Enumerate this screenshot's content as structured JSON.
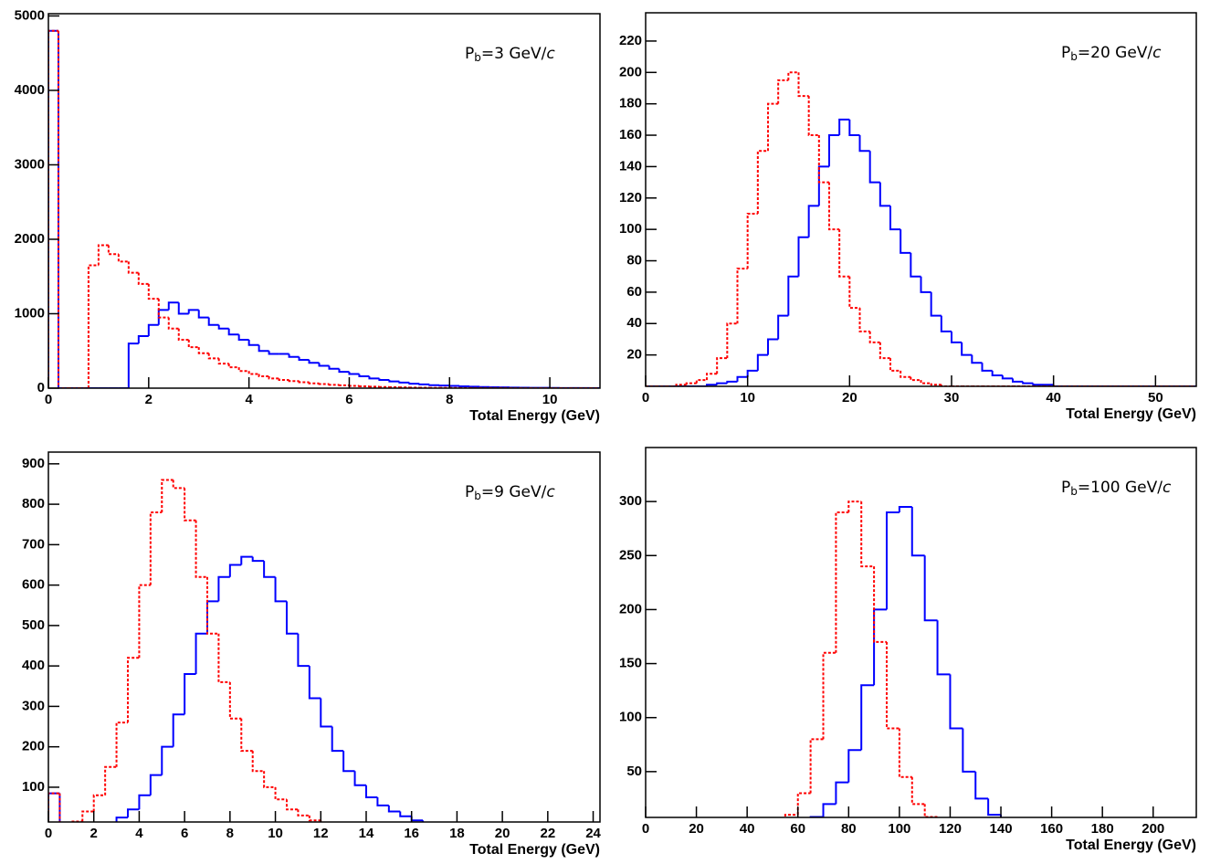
{
  "chart_data": [
    {
      "type": "histogram",
      "xlabel": "Total Energy (GeV)",
      "annotation": [
        "P",
        "b",
        "=3 GeV/",
        "c"
      ],
      "xlim": [
        0,
        11
      ],
      "ylim": [
        0,
        5030
      ],
      "xticks": [
        0,
        2,
        4,
        6,
        8,
        10
      ],
      "yticks": [
        0,
        1000,
        2000,
        3000,
        4000,
        5000
      ],
      "grid": false,
      "bins": [
        0,
        0.2,
        0.4,
        0.6,
        0.8,
        1,
        1.2,
        1.4,
        1.6,
        1.8,
        2,
        2.2,
        2.4,
        2.6,
        2.8,
        3,
        3.2,
        3.4,
        3.6,
        3.8,
        4,
        4.2,
        4.4,
        4.6,
        4.8,
        5,
        5.2,
        5.4,
        5.6,
        5.8,
        6,
        6.2,
        6.4,
        6.6,
        6.8,
        7,
        7.2,
        7.4,
        7.6,
        7.8,
        8,
        8.2,
        8.4,
        8.6,
        8.8,
        9,
        9.2,
        9.4,
        9.6,
        9.8,
        10,
        10.2,
        10.4,
        10.6,
        10.8,
        11
      ],
      "series": [
        {
          "color": "#0000ff",
          "linestyle": "solid",
          "values": [
            4800,
            0,
            0,
            0,
            0,
            0,
            0,
            0,
            600,
            700,
            850,
            1050,
            1150,
            1000,
            1050,
            950,
            850,
            800,
            720,
            650,
            580,
            500,
            460,
            460,
            420,
            380,
            340,
            300,
            260,
            220,
            190,
            160,
            130,
            110,
            90,
            75,
            60,
            50,
            40,
            35,
            30,
            25,
            20,
            15,
            12,
            10,
            8,
            6,
            5,
            4,
            3,
            2,
            2,
            1,
            1
          ]
        },
        {
          "color": "#ff0000",
          "linestyle": "dashed",
          "values": [
            4800,
            0,
            0,
            0,
            1650,
            1920,
            1800,
            1700,
            1550,
            1400,
            1200,
            950,
            800,
            650,
            550,
            470,
            400,
            330,
            280,
            230,
            190,
            160,
            130,
            110,
            95,
            80,
            65,
            55,
            45,
            38,
            30,
            25,
            20,
            16,
            12,
            10,
            8,
            6,
            5,
            4,
            3,
            2,
            2,
            1,
            1,
            1,
            0,
            0,
            0,
            0,
            0,
            0,
            0,
            0,
            0
          ]
        }
      ]
    },
    {
      "type": "histogram",
      "xlabel": "Total Energy (GeV)",
      "annotation": [
        "P",
        "b",
        "=20 GeV/",
        "c"
      ],
      "xlim": [
        0,
        54
      ],
      "ylim": [
        0,
        238
      ],
      "xticks": [
        0,
        10,
        20,
        30,
        40,
        50
      ],
      "yticks": [
        20,
        40,
        60,
        80,
        100,
        120,
        140,
        160,
        180,
        200,
        220
      ],
      "grid": false,
      "bins": [
        0,
        1,
        2,
        3,
        4,
        5,
        6,
        7,
        8,
        9,
        10,
        11,
        12,
        13,
        14,
        15,
        16,
        17,
        18,
        19,
        20,
        21,
        22,
        23,
        24,
        25,
        26,
        27,
        28,
        29,
        30,
        31,
        32,
        33,
        34,
        35,
        36,
        37,
        38,
        39,
        40,
        41,
        42,
        43,
        44,
        45,
        46,
        47,
        48,
        49,
        50,
        51,
        52,
        53,
        54
      ],
      "series": [
        {
          "color": "#0000ff",
          "linestyle": "solid",
          "values": [
            0,
            0,
            0,
            0,
            0,
            0,
            1,
            2,
            3,
            6,
            10,
            20,
            30,
            45,
            70,
            95,
            115,
            140,
            160,
            170,
            160,
            150,
            130,
            115,
            100,
            85,
            70,
            60,
            45,
            35,
            28,
            20,
            15,
            10,
            7,
            5,
            3,
            2,
            1,
            1,
            0,
            0,
            0,
            0,
            0,
            0,
            0,
            0,
            0,
            0,
            0,
            0,
            0,
            0
          ]
        },
        {
          "color": "#ff0000",
          "linestyle": "dashed",
          "values": [
            0,
            0,
            0,
            1,
            2,
            4,
            8,
            18,
            40,
            75,
            110,
            150,
            180,
            195,
            200,
            185,
            160,
            130,
            100,
            70,
            50,
            35,
            28,
            18,
            10,
            6,
            4,
            2,
            1,
            0,
            0,
            0,
            0,
            0,
            0,
            0,
            0,
            0,
            0,
            0,
            0,
            0,
            0,
            0,
            0,
            0,
            0,
            0,
            0,
            0,
            0,
            0,
            0,
            0
          ]
        }
      ]
    },
    {
      "type": "histogram",
      "xlabel": "Total Energy (GeV)",
      "annotation": [
        "P",
        "b",
        "=9 GeV/",
        "c"
      ],
      "xlim": [
        0,
        24.3
      ],
      "ylim": [
        14,
        929
      ],
      "xticks": [
        0,
        2,
        4,
        6,
        8,
        10,
        12,
        14,
        16,
        18,
        20,
        22,
        24
      ],
      "yticks": [
        100,
        200,
        300,
        400,
        500,
        600,
        700,
        800,
        900
      ],
      "grid": false,
      "bins": [
        0,
        0.5,
        1,
        1.5,
        2,
        2.5,
        3,
        3.5,
        4,
        4.5,
        5,
        5.5,
        6,
        6.5,
        7,
        7.5,
        8,
        8.5,
        9,
        9.5,
        10,
        10.5,
        11,
        11.5,
        12,
        12.5,
        13,
        13.5,
        14,
        14.5,
        15,
        15.5,
        16,
        16.5,
        17,
        17.5,
        18,
        18.5,
        19,
        19.5,
        20,
        20.5,
        21,
        21.5,
        22,
        22.5,
        23,
        23.5,
        24
      ],
      "series": [
        {
          "color": "#0000ff",
          "linestyle": "solid",
          "values": [
            85,
            0,
            0,
            0,
            2,
            10,
            25,
            45,
            80,
            130,
            200,
            280,
            380,
            480,
            560,
            620,
            650,
            670,
            660,
            620,
            560,
            480,
            400,
            320,
            250,
            190,
            140,
            105,
            75,
            55,
            40,
            28,
            18,
            12,
            8,
            5,
            3,
            2,
            1,
            0,
            0,
            0,
            0,
            0,
            0,
            0,
            0,
            0
          ]
        },
        {
          "color": "#ff0000",
          "linestyle": "dashed",
          "values": [
            85,
            5,
            15,
            40,
            80,
            150,
            260,
            420,
            600,
            780,
            860,
            840,
            760,
            620,
            480,
            360,
            270,
            190,
            140,
            100,
            70,
            45,
            30,
            18,
            10,
            6,
            3,
            2,
            1,
            0,
            0,
            0,
            0,
            0,
            0,
            0,
            0,
            0,
            0,
            0,
            0,
            0,
            0,
            0,
            0,
            0,
            0,
            0
          ]
        }
      ]
    },
    {
      "type": "histogram",
      "xlabel": "Total Energy (GeV)",
      "annotation": [
        "P",
        "b",
        "=100 GeV/",
        "c"
      ],
      "xlim": [
        0,
        217
      ],
      "ylim": [
        7.6,
        350
      ],
      "xticks": [
        0,
        20,
        40,
        60,
        80,
        100,
        120,
        140,
        160,
        180,
        200
      ],
      "yticks": [
        50,
        100,
        150,
        200,
        250,
        300
      ],
      "grid": false,
      "bins": [
        0,
        5,
        10,
        15,
        20,
        25,
        30,
        35,
        40,
        45,
        50,
        55,
        60,
        65,
        70,
        75,
        80,
        85,
        90,
        95,
        100,
        105,
        110,
        115,
        120,
        125,
        130,
        135,
        140,
        145,
        150,
        155,
        160,
        165,
        170,
        175,
        180,
        185,
        190,
        195,
        200,
        205,
        210,
        215
      ],
      "series": [
        {
          "color": "#0000ff",
          "linestyle": "solid",
          "values": [
            0,
            0,
            0,
            0,
            0,
            0,
            0,
            0,
            0,
            0,
            0,
            0,
            0,
            8,
            20,
            40,
            70,
            130,
            200,
            290,
            295,
            250,
            190,
            140,
            90,
            50,
            25,
            10,
            3,
            0,
            0,
            0,
            0,
            0,
            0,
            0,
            0,
            0,
            0,
            0,
            0,
            0,
            0
          ]
        },
        {
          "color": "#ff0000",
          "linestyle": "dashed",
          "values": [
            0,
            0,
            0,
            0,
            0,
            0,
            0,
            0,
            0,
            0,
            0,
            10,
            30,
            80,
            160,
            290,
            300,
            240,
            170,
            90,
            45,
            20,
            8,
            3,
            0,
            0,
            0,
            0,
            0,
            0,
            0,
            0,
            0,
            0,
            0,
            0,
            0,
            0,
            0,
            0,
            0,
            0,
            0
          ]
        }
      ]
    }
  ]
}
